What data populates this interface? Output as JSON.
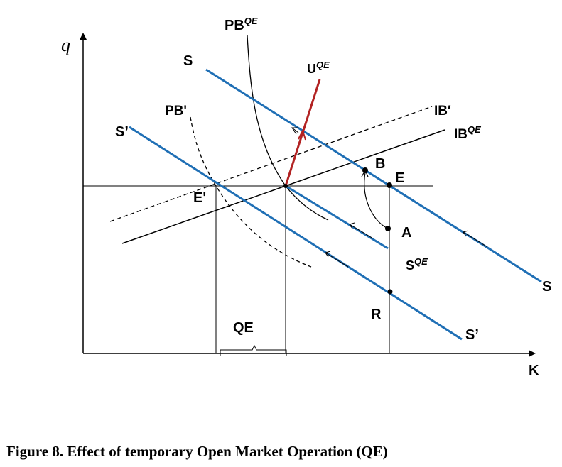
{
  "axes": {
    "y_label": "q",
    "x_label": "K"
  },
  "curves": {
    "pb_qe": {
      "label": "PB",
      "sup": "QE"
    },
    "pb_prime": {
      "label": "PB'"
    },
    "u_qe": {
      "label": "U",
      "sup": "QE"
    },
    "ib_prime": {
      "label": "IB′"
    },
    "ib_qe": {
      "label": "IB",
      "sup": "QE"
    },
    "s_top": {
      "label": "S"
    },
    "s_right": {
      "label": "S"
    },
    "s_prime_left": {
      "label": "S’"
    },
    "s_prime_right": {
      "label": "S’"
    },
    "s_qe": {
      "label": "S",
      "sup": "QE"
    }
  },
  "points": {
    "e_prime": "E'",
    "b": "B",
    "e": "E",
    "a": "A",
    "r": "R"
  },
  "bracket_label": "QE",
  "colors": {
    "blue": "#1f6fb5",
    "red": "#b22222",
    "black": "#000000"
  },
  "caption": "Figure 8. Effect of temporary Open Market Operation (QE)"
}
